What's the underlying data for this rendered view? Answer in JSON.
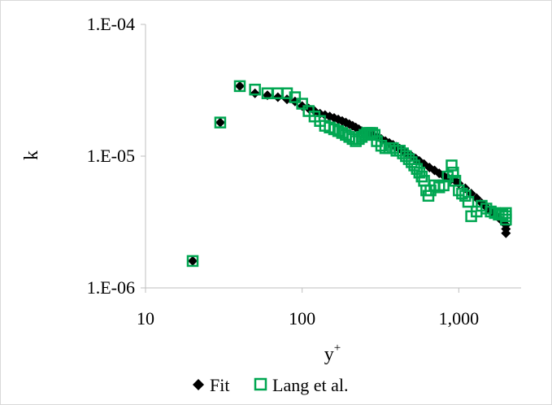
{
  "chart_data": {
    "type": "scatter",
    "xlabel": "y",
    "xlabel_sup": "+",
    "ylabel": "k",
    "x_scale": "log",
    "y_scale": "log",
    "xlim": [
      10,
      2500
    ],
    "ylim": [
      1e-06,
      0.0001
    ],
    "x_ticks": [
      {
        "value": 10,
        "label": "10"
      },
      {
        "value": 100,
        "label": "100"
      },
      {
        "value": 1000,
        "label": "1,000"
      }
    ],
    "y_ticks": [
      {
        "value": 1e-06,
        "label": "1.E-06"
      },
      {
        "value": 1e-05,
        "label": "1.E-05"
      },
      {
        "value": 0.0001,
        "label": "1.E-04"
      }
    ],
    "grid": false,
    "legend_position": "bottom",
    "colors": {
      "fit": "#000000",
      "lang": "#00a651"
    },
    "series": [
      {
        "name": "Fit",
        "marker": "diamond",
        "color": "#000000",
        "points": [
          [
            20,
            1.6e-06
          ],
          [
            30,
            1.8e-05
          ],
          [
            40,
            3.4e-05
          ],
          [
            50,
            3e-05
          ],
          [
            60,
            2.9e-05
          ],
          [
            70,
            2.8e-05
          ],
          [
            80,
            2.7e-05
          ],
          [
            90,
            2.6e-05
          ],
          [
            100,
            2.4e-05
          ],
          [
            110,
            2.3e-05
          ],
          [
            120,
            2.2e-05
          ],
          [
            130,
            2.1e-05
          ],
          [
            140,
            2.05e-05
          ],
          [
            150,
            2e-05
          ],
          [
            160,
            1.95e-05
          ],
          [
            170,
            1.9e-05
          ],
          [
            180,
            1.85e-05
          ],
          [
            190,
            1.8e-05
          ],
          [
            200,
            1.75e-05
          ],
          [
            210,
            1.7e-05
          ],
          [
            220,
            1.65e-05
          ],
          [
            230,
            1.6e-05
          ],
          [
            240,
            1.55e-05
          ],
          [
            260,
            1.5e-05
          ],
          [
            280,
            1.45e-05
          ],
          [
            300,
            1.4e-05
          ],
          [
            320,
            1.35e-05
          ],
          [
            340,
            1.3e-05
          ],
          [
            360,
            1.26e-05
          ],
          [
            380,
            1.22e-05
          ],
          [
            400,
            1.18e-05
          ],
          [
            420,
            1.14e-05
          ],
          [
            440,
            1.1e-05
          ],
          [
            460,
            1.06e-05
          ],
          [
            480,
            1.03e-05
          ],
          [
            500,
            1e-05
          ],
          [
            530,
            9.6e-06
          ],
          [
            560,
            9.2e-06
          ],
          [
            600,
            8.7e-06
          ],
          [
            650,
            8.2e-06
          ],
          [
            700,
            7.8e-06
          ],
          [
            750,
            7.4e-06
          ],
          [
            800,
            7.1e-06
          ],
          [
            850,
            6.9e-06
          ],
          [
            900,
            6.7e-06
          ],
          [
            950,
            6.5e-06
          ],
          [
            1000,
            6.2e-06
          ],
          [
            1100,
            5.7e-06
          ],
          [
            1200,
            5.2e-06
          ],
          [
            1300,
            4.8e-06
          ],
          [
            1400,
            4.4e-06
          ],
          [
            1500,
            4.1e-06
          ],
          [
            1600,
            3.8e-06
          ],
          [
            1700,
            3.6e-06
          ],
          [
            1800,
            3.4e-06
          ],
          [
            1900,
            3.2e-06
          ],
          [
            2000,
            3e-06
          ],
          [
            2000,
            2.8e-06
          ],
          [
            2000,
            2.6e-06
          ]
        ]
      },
      {
        "name": "Lang et al.",
        "marker": "square-open",
        "color": "#00a651",
        "points": [
          [
            20,
            1.6e-06
          ],
          [
            30,
            1.8e-05
          ],
          [
            40,
            3.4e-05
          ],
          [
            50,
            3.2e-05
          ],
          [
            60,
            3e-05
          ],
          [
            70,
            3e-05
          ],
          [
            80,
            3e-05
          ],
          [
            90,
            2.8e-05
          ],
          [
            100,
            2.5e-05
          ],
          [
            110,
            2.2e-05
          ],
          [
            120,
            2e-05
          ],
          [
            130,
            1.85e-05
          ],
          [
            140,
            1.7e-05
          ],
          [
            150,
            1.65e-05
          ],
          [
            160,
            1.6e-05
          ],
          [
            170,
            1.55e-05
          ],
          [
            180,
            1.5e-05
          ],
          [
            190,
            1.45e-05
          ],
          [
            200,
            1.4e-05
          ],
          [
            210,
            1.35e-05
          ],
          [
            220,
            1.3e-05
          ],
          [
            230,
            1.35e-05
          ],
          [
            240,
            1.4e-05
          ],
          [
            250,
            1.45e-05
          ],
          [
            260,
            1.5e-05
          ],
          [
            270,
            1.5e-05
          ],
          [
            280,
            1.5e-05
          ],
          [
            290,
            1.45e-05
          ],
          [
            300,
            1.3e-05
          ],
          [
            320,
            1.2e-05
          ],
          [
            340,
            1.15e-05
          ],
          [
            360,
            1.15e-05
          ],
          [
            380,
            1.15e-05
          ],
          [
            400,
            1.1e-05
          ],
          [
            420,
            1.1e-05
          ],
          [
            440,
            1.05e-05
          ],
          [
            460,
            1e-05
          ],
          [
            480,
            9.5e-06
          ],
          [
            500,
            9e-06
          ],
          [
            520,
            8.5e-06
          ],
          [
            540,
            8e-06
          ],
          [
            560,
            7.5e-06
          ],
          [
            580,
            7e-06
          ],
          [
            600,
            6.5e-06
          ],
          [
            620,
            5.5e-06
          ],
          [
            640,
            5e-06
          ],
          [
            660,
            5.5e-06
          ],
          [
            700,
            6e-06
          ],
          [
            750,
            5.8e-06
          ],
          [
            800,
            6e-06
          ],
          [
            850,
            7e-06
          ],
          [
            900,
            8.5e-06
          ],
          [
            920,
            7.5e-06
          ],
          [
            950,
            6.5e-06
          ],
          [
            1000,
            5.5e-06
          ],
          [
            1050,
            5.2e-06
          ],
          [
            1100,
            5e-06
          ],
          [
            1150,
            4.5e-06
          ],
          [
            1200,
            3.5e-06
          ],
          [
            1300,
            3.8e-06
          ],
          [
            1400,
            4.2e-06
          ],
          [
            1500,
            4e-06
          ],
          [
            1600,
            3.8e-06
          ],
          [
            1700,
            3.7e-06
          ],
          [
            1800,
            3.6e-06
          ],
          [
            1900,
            3.6e-06
          ],
          [
            2000,
            3.7e-06
          ],
          [
            2000,
            3.5e-06
          ],
          [
            2000,
            3.3e-06
          ]
        ]
      }
    ]
  }
}
